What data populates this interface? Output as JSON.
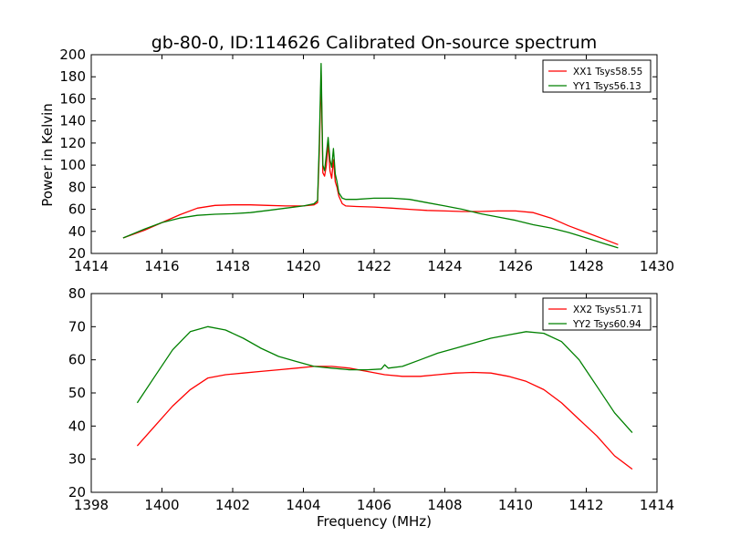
{
  "chart_data": [
    {
      "type": "line",
      "title": "gb-80-0, ID:114626 Calibrated On-source spectrum",
      "xlabel": "",
      "ylabel": "Power in Kelvin",
      "xlim": [
        1414,
        1430
      ],
      "ylim": [
        20,
        200
      ],
      "xticks": [
        "1414",
        "1416",
        "1418",
        "1420",
        "1422",
        "1424",
        "1426",
        "1428",
        "1430"
      ],
      "yticks": [
        "20",
        "40",
        "60",
        "80",
        "100",
        "120",
        "140",
        "160",
        "180",
        "200"
      ],
      "legend": "top-right",
      "series": [
        {
          "name": "XX1 Tsys58.55",
          "color": "#ff0000",
          "x": [
            1414.9,
            1415.5,
            1416.0,
            1416.5,
            1417.0,
            1417.5,
            1418.0,
            1418.5,
            1419.0,
            1419.5,
            1420.0,
            1420.3,
            1420.4,
            1420.45,
            1420.5,
            1420.55,
            1420.6,
            1420.65,
            1420.7,
            1420.75,
            1420.8,
            1420.85,
            1420.9,
            1420.95,
            1421.0,
            1421.1,
            1421.2,
            1421.5,
            1422.0,
            1422.5,
            1423.0,
            1423.5,
            1424.0,
            1424.5,
            1425.0,
            1425.5,
            1426.0,
            1426.5,
            1427.0,
            1427.5,
            1428.0,
            1428.5,
            1428.9
          ],
          "values": [
            34,
            41,
            48,
            55,
            61,
            63.5,
            64,
            64,
            63.5,
            63,
            63,
            64,
            66,
            110,
            182,
            93,
            90,
            100,
            120,
            95,
            88,
            105,
            85,
            80,
            72,
            65,
            63,
            62.5,
            62,
            61,
            60,
            59,
            58.5,
            58,
            58,
            58.5,
            58.5,
            57,
            52,
            45,
            39,
            33,
            28
          ]
        },
        {
          "name": "YY1 Tsys56.13",
          "color": "#008000",
          "x": [
            1414.9,
            1415.5,
            1416.0,
            1416.5,
            1417.0,
            1417.5,
            1418.0,
            1418.5,
            1419.0,
            1419.5,
            1420.0,
            1420.3,
            1420.4,
            1420.45,
            1420.5,
            1420.55,
            1420.6,
            1420.65,
            1420.7,
            1420.75,
            1420.8,
            1420.85,
            1420.9,
            1420.95,
            1421.0,
            1421.1,
            1421.2,
            1421.5,
            1422.0,
            1422.5,
            1423.0,
            1423.5,
            1424.0,
            1424.5,
            1425.0,
            1425.5,
            1426.0,
            1426.5,
            1427.0,
            1427.5,
            1428.0,
            1428.5,
            1428.9
          ],
          "values": [
            34,
            42,
            48,
            52,
            54.5,
            55.5,
            56,
            57,
            59,
            61,
            63,
            65,
            68,
            120,
            192,
            100,
            95,
            110,
            125,
            105,
            98,
            115,
            92,
            85,
            75,
            70,
            69,
            69,
            70,
            70,
            69,
            66,
            63,
            60,
            56,
            53,
            50,
            46,
            43,
            39,
            34,
            29,
            25
          ]
        }
      ]
    },
    {
      "type": "line",
      "title": "",
      "xlabel": "Frequency (MHz)",
      "ylabel": "",
      "xlim": [
        1398,
        1414
      ],
      "ylim": [
        20,
        80
      ],
      "xticks": [
        "1398",
        "1400",
        "1402",
        "1404",
        "1406",
        "1408",
        "1410",
        "1412",
        "1414"
      ],
      "yticks": [
        "20",
        "30",
        "40",
        "50",
        "60",
        "70",
        "80"
      ],
      "legend": "top-right",
      "series": [
        {
          "name": "XX2 Tsys51.71",
          "color": "#ff0000",
          "x": [
            1399.3,
            1399.8,
            1400.3,
            1400.8,
            1401.3,
            1401.8,
            1402.3,
            1402.8,
            1403.3,
            1403.8,
            1404.3,
            1404.8,
            1405.3,
            1405.8,
            1406.3,
            1406.8,
            1407.3,
            1407.8,
            1408.3,
            1408.8,
            1409.3,
            1409.8,
            1410.3,
            1410.8,
            1411.3,
            1411.8,
            1412.3,
            1412.8,
            1413.3
          ],
          "values": [
            34,
            40,
            46,
            51,
            54.5,
            55.5,
            56,
            56.5,
            57,
            57.5,
            58,
            58,
            57.5,
            56.5,
            55.5,
            55,
            55,
            55.5,
            56,
            56.2,
            56,
            55,
            53.5,
            51,
            47,
            42,
            37,
            31,
            27
          ]
        },
        {
          "name": "YY2 Tsys60.94",
          "color": "#008000",
          "x": [
            1399.3,
            1399.8,
            1400.3,
            1400.8,
            1401.3,
            1401.8,
            1402.3,
            1402.8,
            1403.3,
            1403.8,
            1404.3,
            1404.8,
            1405.3,
            1405.8,
            1406.2,
            1406.3,
            1406.4,
            1406.8,
            1407.3,
            1407.8,
            1408.3,
            1408.8,
            1409.3,
            1409.8,
            1410.3,
            1410.8,
            1411.3,
            1411.8,
            1412.3,
            1412.8,
            1413.3
          ],
          "values": [
            47,
            55,
            63,
            68.5,
            70,
            69,
            66.5,
            63.5,
            61,
            59.5,
            58,
            57.5,
            57,
            57,
            57.2,
            58.5,
            57.5,
            58,
            60,
            62,
            63.5,
            65,
            66.5,
            67.5,
            68.5,
            68,
            65.5,
            60,
            52,
            44,
            38
          ]
        }
      ]
    }
  ]
}
